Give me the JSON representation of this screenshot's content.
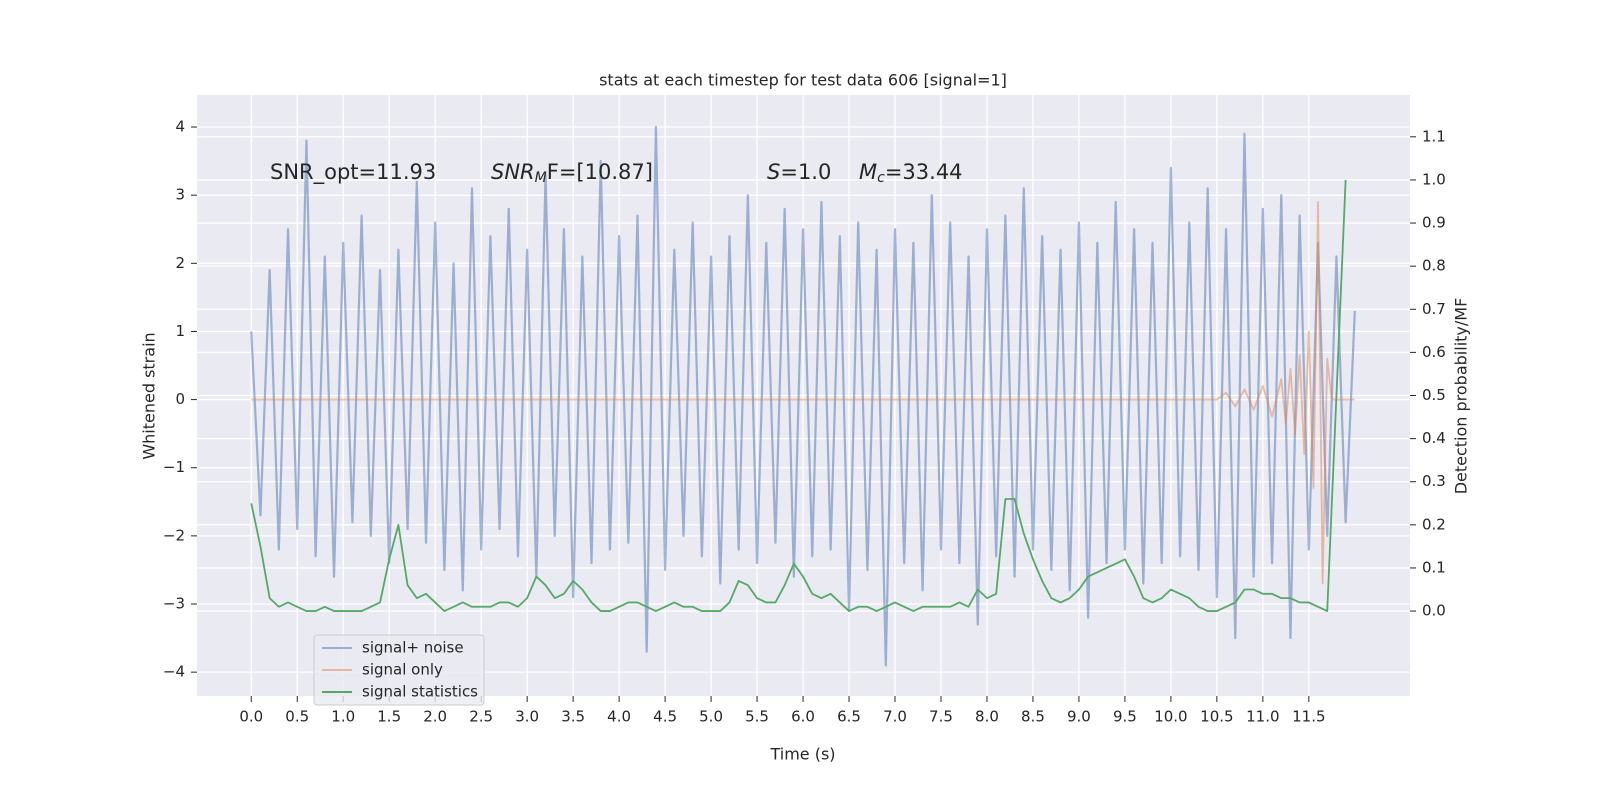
{
  "chart_data": {
    "type": "line",
    "title": "stats at each timestep for test data 606 [signal=1]",
    "xlabel": "Time (s)",
    "ylabel": "Whitened strain",
    "y2label": "Detection probability/MF",
    "xlim": [
      -0.59,
      12.6
    ],
    "ylim": [
      -4.35,
      4.47
    ],
    "y2lim": [
      -0.197,
      1.197
    ],
    "xticks": [
      {
        "value": 0,
        "label": "0.0"
      },
      0.5,
      {
        "value": 1,
        "label": "1.0"
      },
      1.5,
      {
        "value": 2,
        "label": "2.0"
      },
      2.5,
      {
        "value": 3,
        "label": "3.0"
      },
      3.5,
      {
        "value": 4,
        "label": "4.0"
      },
      4.5,
      {
        "value": 5,
        "label": "5.0"
      },
      5.5,
      {
        "value": 6,
        "label": "6.0"
      },
      6.5,
      {
        "value": 7,
        "label": "7.0"
      },
      7.5,
      {
        "value": 8,
        "label": "8.0"
      },
      8.5,
      {
        "value": 9,
        "label": "9.0"
      },
      9.5,
      {
        "value": 10,
        "label": "10.0"
      },
      10.5,
      {
        "value": 11,
        "label": "11.0"
      },
      11.5
    ],
    "yticks": [
      {
        "value": -4,
        "label": "−4"
      },
      {
        "value": -3,
        "label": "−3"
      },
      {
        "value": -2,
        "label": "−2"
      },
      {
        "value": -1,
        "label": "−1"
      },
      0,
      1,
      2,
      3,
      4
    ],
    "y2ticks": [
      {
        "value": 0,
        "label": "0.0"
      },
      0.1,
      0.2,
      0.3,
      0.4,
      0.5,
      0.6,
      0.7,
      0.8,
      0.9,
      {
        "value": 1,
        "label": "1.0"
      },
      1.1
    ],
    "grid": true,
    "legend": "lower left",
    "annotations": [
      [
        {
          "text": "SNR_opt=11.93"
        }
      ],
      [
        {
          "text": "SNR",
          "style": "italic"
        },
        {
          "text": "M",
          "style": "sub"
        },
        {
          "text": "F=[10.87]"
        }
      ],
      [
        {
          "text": "S",
          "style": "italic"
        },
        {
          "text": "=1.0"
        }
      ],
      [
        {
          "text": "M",
          "style": "italic"
        },
        {
          "text": "c",
          "style": "sub"
        },
        {
          "text": "=33.44"
        }
      ]
    ],
    "series": [
      {
        "name": "signal+ noise",
        "color": "#4c72b0",
        "opacity": 0.5,
        "x": [
          0,
          0.1,
          0.2,
          0.3,
          0.4,
          0.5,
          0.6,
          0.7,
          0.8,
          0.9,
          1,
          1.1,
          1.2,
          1.3,
          1.4,
          1.5,
          1.6,
          1.7,
          1.8,
          1.9,
          2,
          2.1,
          2.2,
          2.3,
          2.4,
          2.5,
          2.6,
          2.7,
          2.8,
          2.9,
          3,
          3.1,
          3.2,
          3.3,
          3.4,
          3.5,
          3.6,
          3.7,
          3.8,
          3.9,
          4,
          4.1,
          4.2,
          4.3,
          4.4,
          4.5,
          4.6,
          4.7,
          4.8,
          4.9,
          5,
          5.1,
          5.2,
          5.3,
          5.4,
          5.5,
          5.6,
          5.7,
          5.8,
          5.9,
          6,
          6.1,
          6.2,
          6.3,
          6.4,
          6.5,
          6.6,
          6.7,
          6.8,
          6.9,
          7,
          7.1,
          7.2,
          7.3,
          7.4,
          7.5,
          7.6,
          7.7,
          7.8,
          7.9,
          8,
          8.1,
          8.2,
          8.3,
          8.4,
          8.5,
          8.6,
          8.7,
          8.8,
          8.9,
          9,
          9.1,
          9.2,
          9.3,
          9.4,
          9.5,
          9.6,
          9.7,
          9.8,
          9.9,
          10,
          10.1,
          10.2,
          10.3,
          10.4,
          10.5,
          10.6,
          10.7,
          10.8,
          10.9,
          11,
          11.1,
          11.2,
          11.3,
          11.4,
          11.5,
          11.6,
          11.7,
          11.8,
          11.9,
          12
        ],
        "values": [
          1.0,
          -1.7,
          1.9,
          -2.2,
          2.5,
          -1.9,
          3.8,
          -2.3,
          2.1,
          -2.6,
          2.3,
          -1.8,
          2.7,
          -2.0,
          1.9,
          -2.4,
          2.2,
          -1.9,
          3.2,
          -2.1,
          2.6,
          -2.5,
          2.0,
          -2.8,
          3.1,
          -2.2,
          2.4,
          -1.9,
          2.8,
          -2.3,
          2.2,
          -2.6,
          3.3,
          -2.0,
          2.5,
          -2.9,
          2.1,
          -2.4,
          3.5,
          -2.2,
          2.4,
          -2.1,
          2.7,
          -3.7,
          4.0,
          -2.5,
          2.2,
          -2.0,
          2.6,
          -2.3,
          2.1,
          -2.7,
          2.4,
          -2.2,
          3.0,
          -2.4,
          2.3,
          -2.1,
          2.8,
          -2.6,
          2.5,
          -2.3,
          2.9,
          -2.2,
          2.4,
          -3.1,
          2.6,
          -2.5,
          2.2,
          -3.9,
          2.5,
          -2.4,
          2.3,
          -2.8,
          3.0,
          -2.2,
          2.6,
          -2.4,
          2.1,
          -3.3,
          2.5,
          -2.3,
          2.7,
          -2.6,
          3.1,
          -2.2,
          2.4,
          -2.5,
          2.2,
          -2.8,
          2.6,
          -3.2,
          2.3,
          -2.4,
          2.9,
          -2.2,
          2.5,
          -2.7,
          2.3,
          -2.4,
          3.4,
          -2.3,
          2.6,
          -2.5,
          3.1,
          -2.9,
          2.5,
          -3.5,
          3.9,
          -2.6,
          2.8,
          -2.4,
          3.0,
          -3.5,
          2.7,
          -2.2,
          2.3,
          -2.0,
          2.1,
          -1.8,
          1.3
        ]
      },
      {
        "name": "signal only",
        "color": "#dd8452",
        "opacity": 0.5,
        "x": [
          0,
          10.5,
          10.6,
          10.7,
          10.8,
          10.9,
          11,
          11.1,
          11.2,
          11.25,
          11.3,
          11.35,
          11.4,
          11.45,
          11.5,
          11.55,
          11.6,
          11.65,
          11.7,
          11.75,
          12
        ],
        "values": [
          0,
          0,
          0.1,
          -0.1,
          0.15,
          -0.15,
          0.2,
          -0.25,
          0.3,
          -0.35,
          0.45,
          -0.5,
          0.65,
          -0.8,
          1.0,
          -1.3,
          2.9,
          -2.7,
          0.6,
          0,
          0
        ]
      },
      {
        "name": "signal statistics",
        "color": "#55a868",
        "opacity": 1,
        "axis": "y2",
        "x": [
          0,
          0.1,
          0.2,
          0.3,
          0.4,
          0.5,
          0.6,
          0.7,
          0.8,
          0.9,
          1,
          1.1,
          1.2,
          1.3,
          1.4,
          1.5,
          1.6,
          1.7,
          1.8,
          1.9,
          2,
          2.1,
          2.2,
          2.3,
          2.4,
          2.5,
          2.6,
          2.7,
          2.8,
          2.9,
          3,
          3.1,
          3.2,
          3.3,
          3.4,
          3.5,
          3.6,
          3.7,
          3.8,
          3.9,
          4,
          4.1,
          4.2,
          4.3,
          4.4,
          4.5,
          4.6,
          4.7,
          4.8,
          4.9,
          5,
          5.1,
          5.2,
          5.3,
          5.4,
          5.5,
          5.6,
          5.7,
          5.8,
          5.9,
          6,
          6.1,
          6.2,
          6.3,
          6.4,
          6.5,
          6.6,
          6.7,
          6.8,
          6.9,
          7,
          7.1,
          7.2,
          7.3,
          7.4,
          7.5,
          7.6,
          7.7,
          7.8,
          7.9,
          8,
          8.1,
          8.2,
          8.3,
          8.4,
          8.5,
          8.6,
          8.7,
          8.8,
          8.9,
          9,
          9.1,
          9.2,
          9.3,
          9.4,
          9.5,
          9.6,
          9.7,
          9.8,
          9.9,
          10,
          10.1,
          10.2,
          10.3,
          10.4,
          10.5,
          10.6,
          10.7,
          10.8,
          10.9,
          11,
          11.1,
          11.2,
          11.3,
          11.4,
          11.5,
          11.6,
          11.7,
          11.8,
          11.9
        ],
        "values": [
          0.25,
          0.15,
          0.03,
          0.01,
          0.02,
          0.01,
          0.0,
          0.0,
          0.01,
          0.0,
          0.0,
          0.0,
          0.0,
          0.01,
          0.02,
          0.12,
          0.2,
          0.06,
          0.03,
          0.04,
          0.02,
          0.0,
          0.01,
          0.02,
          0.01,
          0.01,
          0.01,
          0.02,
          0.02,
          0.01,
          0.03,
          0.08,
          0.06,
          0.03,
          0.04,
          0.07,
          0.05,
          0.02,
          0.0,
          0.0,
          0.01,
          0.02,
          0.02,
          0.01,
          0.0,
          0.01,
          0.02,
          0.01,
          0.01,
          0.0,
          0.0,
          0.0,
          0.02,
          0.07,
          0.06,
          0.03,
          0.02,
          0.02,
          0.06,
          0.11,
          0.08,
          0.04,
          0.03,
          0.04,
          0.02,
          0.0,
          0.01,
          0.01,
          0.0,
          0.01,
          0.02,
          0.01,
          0.0,
          0.01,
          0.01,
          0.01,
          0.01,
          0.02,
          0.01,
          0.05,
          0.03,
          0.04,
          0.26,
          0.26,
          0.18,
          0.12,
          0.07,
          0.03,
          0.02,
          0.03,
          0.05,
          0.08,
          0.09,
          0.1,
          0.11,
          0.12,
          0.08,
          0.03,
          0.02,
          0.03,
          0.05,
          0.04,
          0.03,
          0.01,
          0.0,
          0.0,
          0.01,
          0.02,
          0.05,
          0.05,
          0.04,
          0.04,
          0.03,
          0.03,
          0.02,
          0.02,
          0.01,
          0.0,
          0.5,
          1.0
        ]
      }
    ]
  }
}
